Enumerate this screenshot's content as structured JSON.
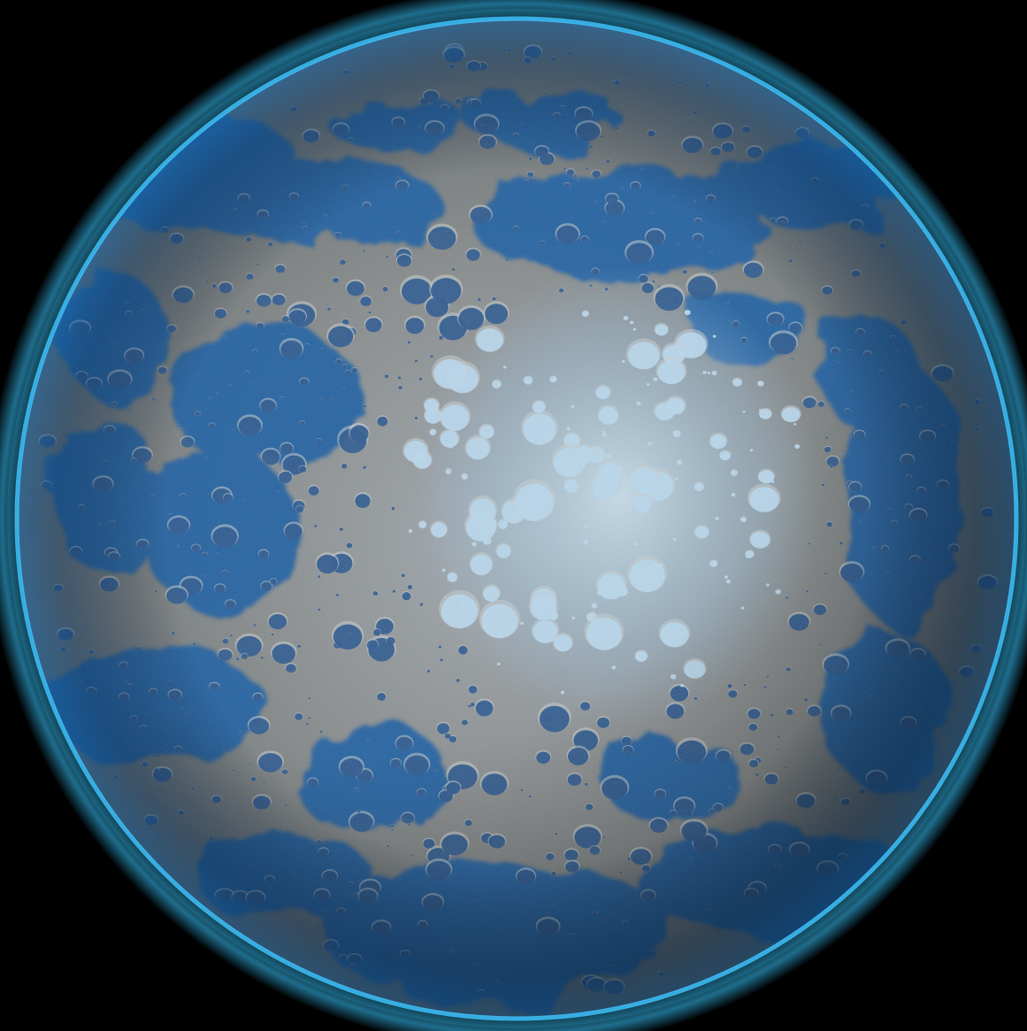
{
  "scene": {
    "background_color": "#000000",
    "subject": "planet-icon",
    "colors": {
      "ocean_deep": "#0b3d78",
      "ocean": "#1d5fa3",
      "atmosphere_glow": "#38c6ff",
      "land_gray": "#7f8384",
      "land_light": "#9aa4ab",
      "ice_light": "#b8d8ee",
      "crater_floor": "#1e4f8a",
      "crater_rim": "#c7cdd0",
      "shadow": "#061a33"
    }
  }
}
